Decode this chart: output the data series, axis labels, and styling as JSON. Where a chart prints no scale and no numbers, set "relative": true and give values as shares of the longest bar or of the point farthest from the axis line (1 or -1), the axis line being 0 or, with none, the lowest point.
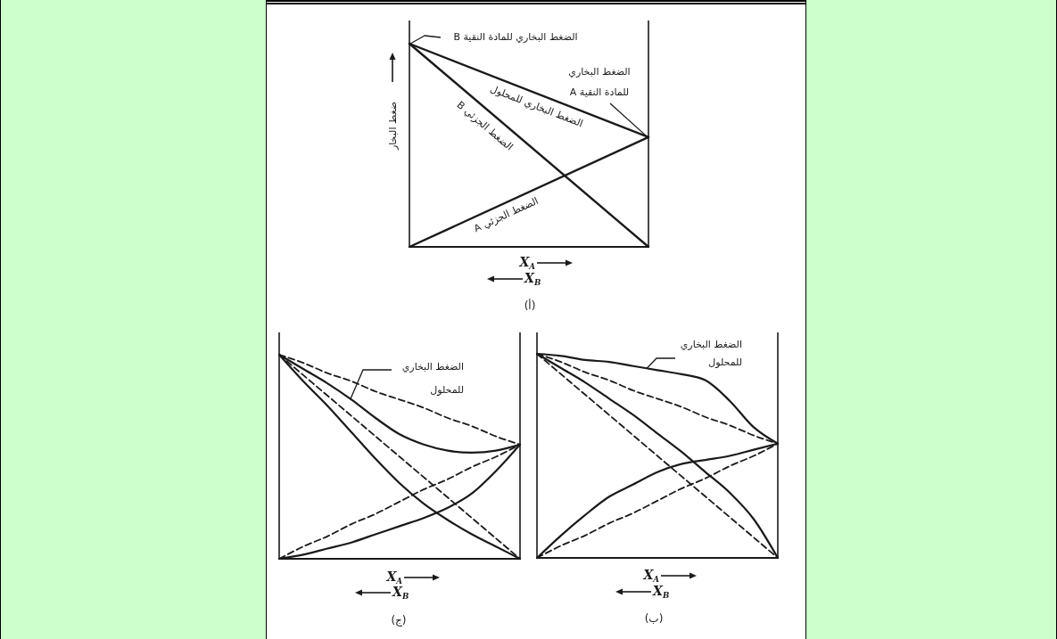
{
  "chart_data": [
    {
      "type": "line",
      "title": "(أ)",
      "xlabel": "X$_{A}$\nX$_{B}$",
      "ylabel": "ضغط البخار",
      "relative": true,
      "categories": [
        null,
        null
      ],
      "series": [
        {
          "name": "الضغط البخاري للمحلول",
          "color": "#1a1a1a",
          "values": [
            1,
            0.54
          ]
        },
        {
          "name": "الضغط الجزئي B",
          "color": "#1a1a1a",
          "values": [
            1,
            0
          ]
        },
        {
          "name": "الضغط الجزئي A",
          "color": "#1a1a1a",
          "values": [
            0,
            0.54
          ]
        }
      ],
      "annotations": [
        "الضغط البخاري للمادة النقية B",
        "الضغط البخاري\nللمادة النقية A"
      ]
    },
    {
      "type": "line",
      "title": "(ب)",
      "xlabel": "X$_{A}$\nX$_{B}$",
      "relative": true,
      "categories": [
        null,
        null,
        null,
        null,
        null,
        null,
        null,
        null,
        null,
        null,
        null
      ],
      "series": [
        {
          "name": "الضغط البخاري\nللمحلول",
          "color": "#1a1a1a",
          "values": [
            1,
            0.99,
            0.97,
            0.96,
            0.94,
            0.92,
            0.9,
            0.87,
            0.77,
            0.64,
            0.56
          ]
        },
        {
          "color": "#1a1a1a",
          "values": [
            1,
            0.93,
            0.86,
            0.78,
            0.7,
            0.61,
            0.52,
            0.42,
            0.32,
            0.19,
            0
          ]
        },
        {
          "color": "#1a1a1a",
          "values": [
            0,
            0.11,
            0.21,
            0.3,
            0.36,
            0.42,
            0.46,
            0.48,
            0.5,
            0.53,
            0.56
          ]
        },
        {
          "color": "#1a1a1a",
          "line_style": "dashed",
          "values": [
            1,
            0.96,
            0.91,
            0.87,
            0.82,
            0.78,
            0.74,
            0.69,
            0.65,
            0.6,
            0.56
          ]
        },
        {
          "color": "#1a1a1a",
          "line_style": "dashed",
          "values": [
            1,
            0.9,
            0.8,
            0.7,
            0.6,
            0.5,
            0.4,
            0.3,
            0.2,
            0.1,
            0
          ]
        },
        {
          "color": "#1a1a1a",
          "line_style": "dashed",
          "values": [
            0,
            0.06,
            0.11,
            0.17,
            0.22,
            0.28,
            0.34,
            0.39,
            0.45,
            0.5,
            0.56
          ]
        }
      ]
    },
    {
      "type": "line",
      "title": "(ج)",
      "xlabel": "X$_{A}$\nX$_{B}$",
      "relative": true,
      "categories": [
        null,
        null,
        null,
        null,
        null,
        null,
        null,
        null,
        null,
        null,
        null
      ],
      "series": [
        {
          "name": "الضغط البخاري\nللمحلول",
          "color": "#1a1a1a",
          "values": [
            1,
            0.93,
            0.86,
            0.78,
            0.69,
            0.61,
            0.56,
            0.53,
            0.52,
            0.53,
            0.56
          ]
        },
        {
          "color": "#1a1a1a",
          "values": [
            1,
            0.87,
            0.75,
            0.62,
            0.49,
            0.37,
            0.27,
            0.19,
            0.12,
            0.06,
            0
          ]
        },
        {
          "color": "#1a1a1a",
          "values": [
            0,
            0.02,
            0.05,
            0.08,
            0.12,
            0.16,
            0.2,
            0.25,
            0.32,
            0.43,
            0.56
          ]
        },
        {
          "color": "#1a1a1a",
          "line_style": "dashed",
          "values": [
            1,
            0.96,
            0.91,
            0.87,
            0.82,
            0.78,
            0.74,
            0.69,
            0.65,
            0.6,
            0.56
          ]
        },
        {
          "color": "#1a1a1a",
          "line_style": "dashed",
          "values": [
            1,
            0.9,
            0.8,
            0.7,
            0.6,
            0.5,
            0.4,
            0.3,
            0.2,
            0.1,
            0
          ]
        },
        {
          "color": "#1a1a1a",
          "line_style": "dashed",
          "values": [
            0,
            0.06,
            0.11,
            0.17,
            0.22,
            0.28,
            0.34,
            0.39,
            0.45,
            0.5,
            0.56
          ]
        }
      ]
    }
  ]
}
